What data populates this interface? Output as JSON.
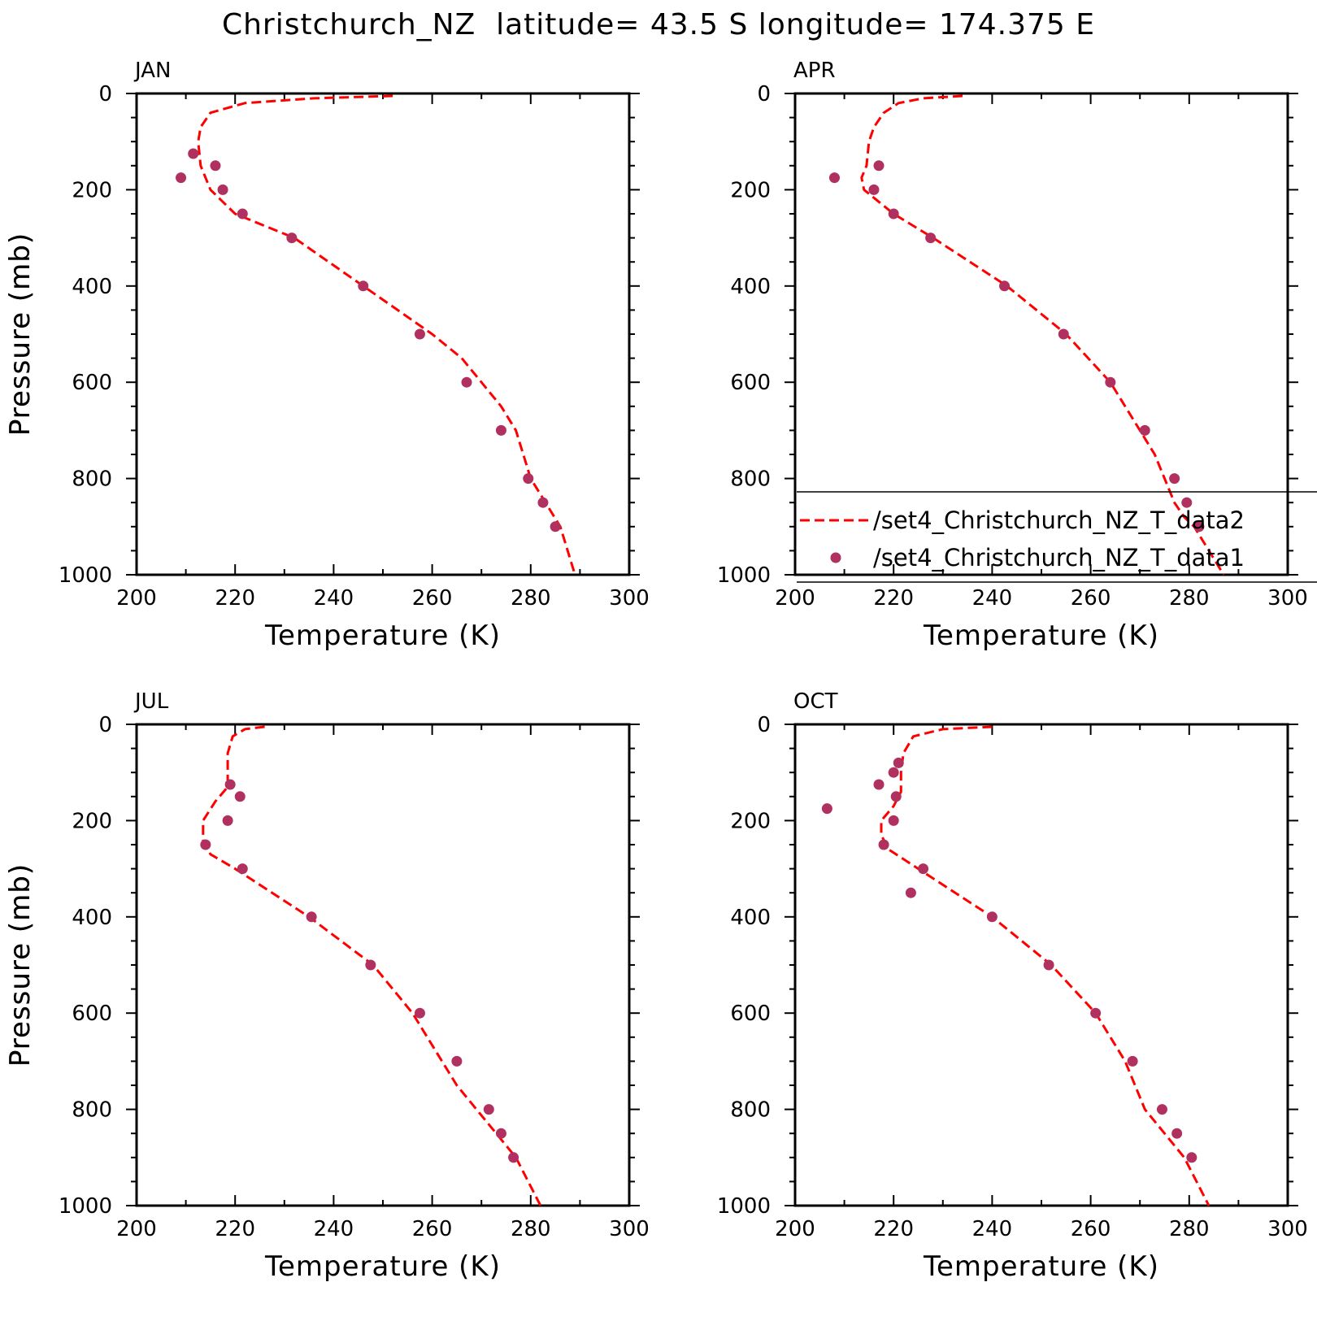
{
  "chart_data": {
    "type": "line",
    "title": "Christchurch_NZ  latitude= 43.5 S longitude= 174.375 E",
    "xlabel": "Temperature (K)",
    "ylabel": "Pressure (mb)",
    "xlim": [
      200,
      300
    ],
    "ylim": [
      1000,
      0
    ],
    "xticks": [
      "200",
      "220",
      "240",
      "260",
      "280",
      "300"
    ],
    "yticks": [
      "0",
      "200",
      "400",
      "600",
      "800",
      "1000"
    ],
    "legend": {
      "placement": "right",
      "entries": [
        "/set4_Christchurch_NZ_T_data2",
        "/set4_Christchurch_NZ_T_data1"
      ]
    },
    "colors": {
      "line": "#ff0000",
      "points": "#b03060"
    },
    "panels": [
      {
        "label": "JAN",
        "series": [
          {
            "name": "/set4_Christchurch_NZ_T_data2",
            "style": "dashed-line",
            "x": [
              252,
              236,
              222,
              215,
              213,
              212.5,
              213,
              215,
              220,
              232,
              246,
              253,
              260,
              266,
              270,
              274,
              277,
              280,
              283,
              286,
              289
            ],
            "y": [
              5,
              10,
              20,
              40,
              70,
              100,
              150,
              200,
              250,
              300,
              400,
              450,
              500,
              550,
              600,
              650,
              700,
              800,
              850,
              900,
              1000
            ]
          },
          {
            "name": "/set4_Christchurch_NZ_T_data1",
            "style": "points",
            "x": [
              211.5,
              216,
              209,
              217.5,
              221.5,
              231.5,
              246,
              257.5,
              267,
              274,
              279.5,
              282.5,
              285
            ],
            "y": [
              125,
              150,
              175,
              200,
              250,
              300,
              400,
              500,
              600,
              700,
              800,
              850,
              900
            ]
          }
        ]
      },
      {
        "label": "APR",
        "series": [
          {
            "name": "/set4_Christchurch_NZ_T_data2",
            "style": "dashed-line",
            "x": [
              234,
              226,
              221,
              218,
              216,
              215,
              214.5,
              213.5,
              214,
              220,
              228,
              243,
              255,
              264,
              270,
              273,
              275,
              277,
              279,
              281,
              287
            ],
            "y": [
              5,
              10,
              20,
              40,
              70,
              100,
              150,
              175,
              200,
              250,
              300,
              400,
              500,
              600,
              700,
              750,
              800,
              850,
              880,
              900,
              1000
            ]
          },
          {
            "name": "/set4_Christchurch_NZ_T_data1",
            "style": "points",
            "x": [
              217,
              208,
              216,
              220,
              227.5,
              242.5,
              254.5,
              264,
              271,
              277,
              279.5,
              282
            ],
            "y": [
              150,
              175,
              200,
              250,
              300,
              400,
              500,
              600,
              700,
              800,
              850,
              900
            ]
          }
        ]
      },
      {
        "label": "JUL",
        "series": [
          {
            "name": "/set4_Christchurch_NZ_T_data2",
            "style": "dashed-line",
            "x": [
              226,
              222,
              219.5,
              218.5,
              218.5,
              218.5,
              216,
              213.5,
              213.5,
              215,
              220,
              235,
              248,
              256,
              262,
              265,
              269,
              273,
              277,
              282
            ],
            "y": [
              5,
              10,
              25,
              60,
              100,
              130,
              160,
              200,
              240,
              270,
              300,
              400,
              500,
              600,
              700,
              750,
              800,
              850,
              900,
              1000
            ]
          },
          {
            "name": "/set4_Christchurch_NZ_T_data1",
            "style": "points",
            "x": [
              219,
              221,
              218.5,
              214,
              221.5,
              235.5,
              247.5,
              257.5,
              265,
              271.5,
              274,
              276.5
            ],
            "y": [
              125,
              150,
              200,
              250,
              300,
              400,
              500,
              600,
              700,
              800,
              850,
              900
            ]
          }
        ]
      },
      {
        "label": "OCT",
        "series": [
          {
            "name": "/set4_Christchurch_NZ_T_data2",
            "style": "dashed-line",
            "x": [
              240,
              230,
              224,
              222,
              221.5,
              221.5,
              220,
              217.5,
              217.5,
              219,
              225,
              240,
              252,
              261,
              267,
              271,
              275,
              279,
              284
            ],
            "y": [
              5,
              10,
              25,
              60,
              100,
              140,
              170,
              200,
              230,
              260,
              300,
              400,
              500,
              600,
              700,
              800,
              850,
              900,
              1000
            ]
          },
          {
            "name": "/set4_Christchurch_NZ_T_data1",
            "style": "points",
            "x": [
              221,
              220,
              217,
              220.5,
              206.5,
              220,
              218,
              226,
              223.5,
              240,
              251.5,
              261,
              268.5,
              274.5,
              277.5,
              280.5
            ],
            "y": [
              80,
              100,
              125,
              150,
              175,
              200,
              250,
              300,
              350,
              400,
              500,
              600,
              700,
              800,
              850,
              900
            ]
          }
        ]
      }
    ]
  }
}
